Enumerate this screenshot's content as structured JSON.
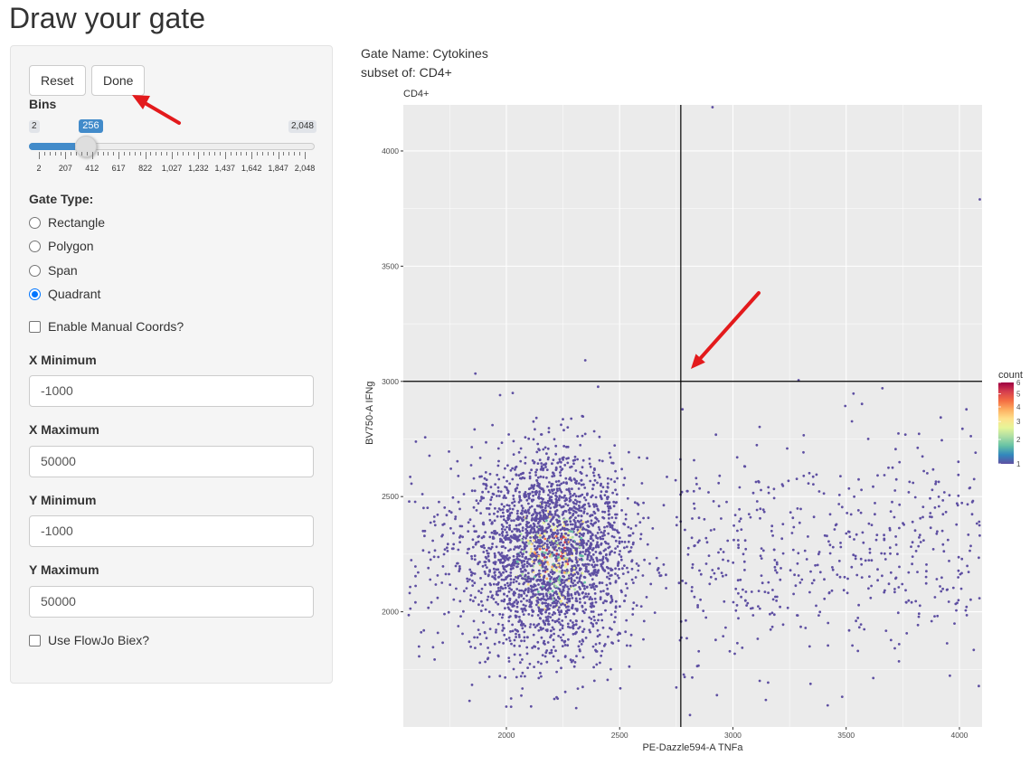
{
  "page": {
    "title": "Draw your gate"
  },
  "sidebar": {
    "buttons": {
      "reset": "Reset",
      "done": "Done"
    },
    "bins": {
      "label": "Bins",
      "min_label": "2",
      "max_label": "2,048",
      "value_label": "256",
      "min": 2,
      "max": 2048,
      "value": 256,
      "ticks": [
        "2",
        "207",
        "412",
        "617",
        "822",
        "1,027",
        "1,232",
        "1,437",
        "1,642",
        "1,847",
        "2,048"
      ]
    },
    "gate_type": {
      "label": "Gate Type:",
      "options": [
        "Rectangle",
        "Polygon",
        "Span",
        "Quadrant"
      ],
      "selected": "Quadrant"
    },
    "manual_coords": {
      "label": "Enable Manual Coords?",
      "checked": false
    },
    "x_min": {
      "label": "X Minimum",
      "value": "-1000"
    },
    "x_max": {
      "label": "X Maximum",
      "value": "50000"
    },
    "y_min": {
      "label": "Y Minimum",
      "value": "-1000"
    },
    "y_max": {
      "label": "Y Maximum",
      "value": "50000"
    },
    "flowjo_biex": {
      "label": "Use FlowJo Biex?",
      "checked": false
    }
  },
  "main": {
    "gate_name": "Gate Name: Cytokines",
    "subset_of": "subset of: CD4+"
  },
  "chart_data": {
    "type": "scatter",
    "title": "CD4+",
    "xlabel": "PE-Dazzle594-A TNFa",
    "ylabel": "BV750-A IFNg",
    "xlim": [
      1545,
      4100
    ],
    "ylim": [
      1500,
      4200
    ],
    "xticks": [
      2000,
      2500,
      3000,
      3500,
      4000
    ],
    "yticks": [
      2000,
      2500,
      3000,
      3500,
      4000
    ],
    "quadrant": {
      "x": 2770,
      "y": 3000
    },
    "legend": {
      "title": "count",
      "ticks": [
        "1",
        "2",
        "3",
        "4",
        "5",
        "6"
      ],
      "placement": "right",
      "colors": [
        "#5e4fa2",
        "#3288bd",
        "#66c2a5",
        "#abdda4",
        "#e6f598",
        "#fee08b",
        "#fdae61",
        "#f46d43",
        "#d53e4f",
        "#9e0142"
      ]
    },
    "point_color": "#5e4fa2",
    "panel_background": "#ebebeb",
    "grid": true,
    "main_cluster": {
      "x_center": 2200,
      "y_center": 2250,
      "x_sd": 170,
      "y_sd": 220,
      "n": 2600
    },
    "outliers": [
      {
        "x": 2910,
        "y": 4190
      },
      {
        "x": 4090,
        "y": 3790
      },
      {
        "x": 3290,
        "y": 3005
      },
      {
        "x": 3660,
        "y": 2970
      }
    ]
  },
  "annotation": {
    "arrow_color": "#e31a1c"
  }
}
